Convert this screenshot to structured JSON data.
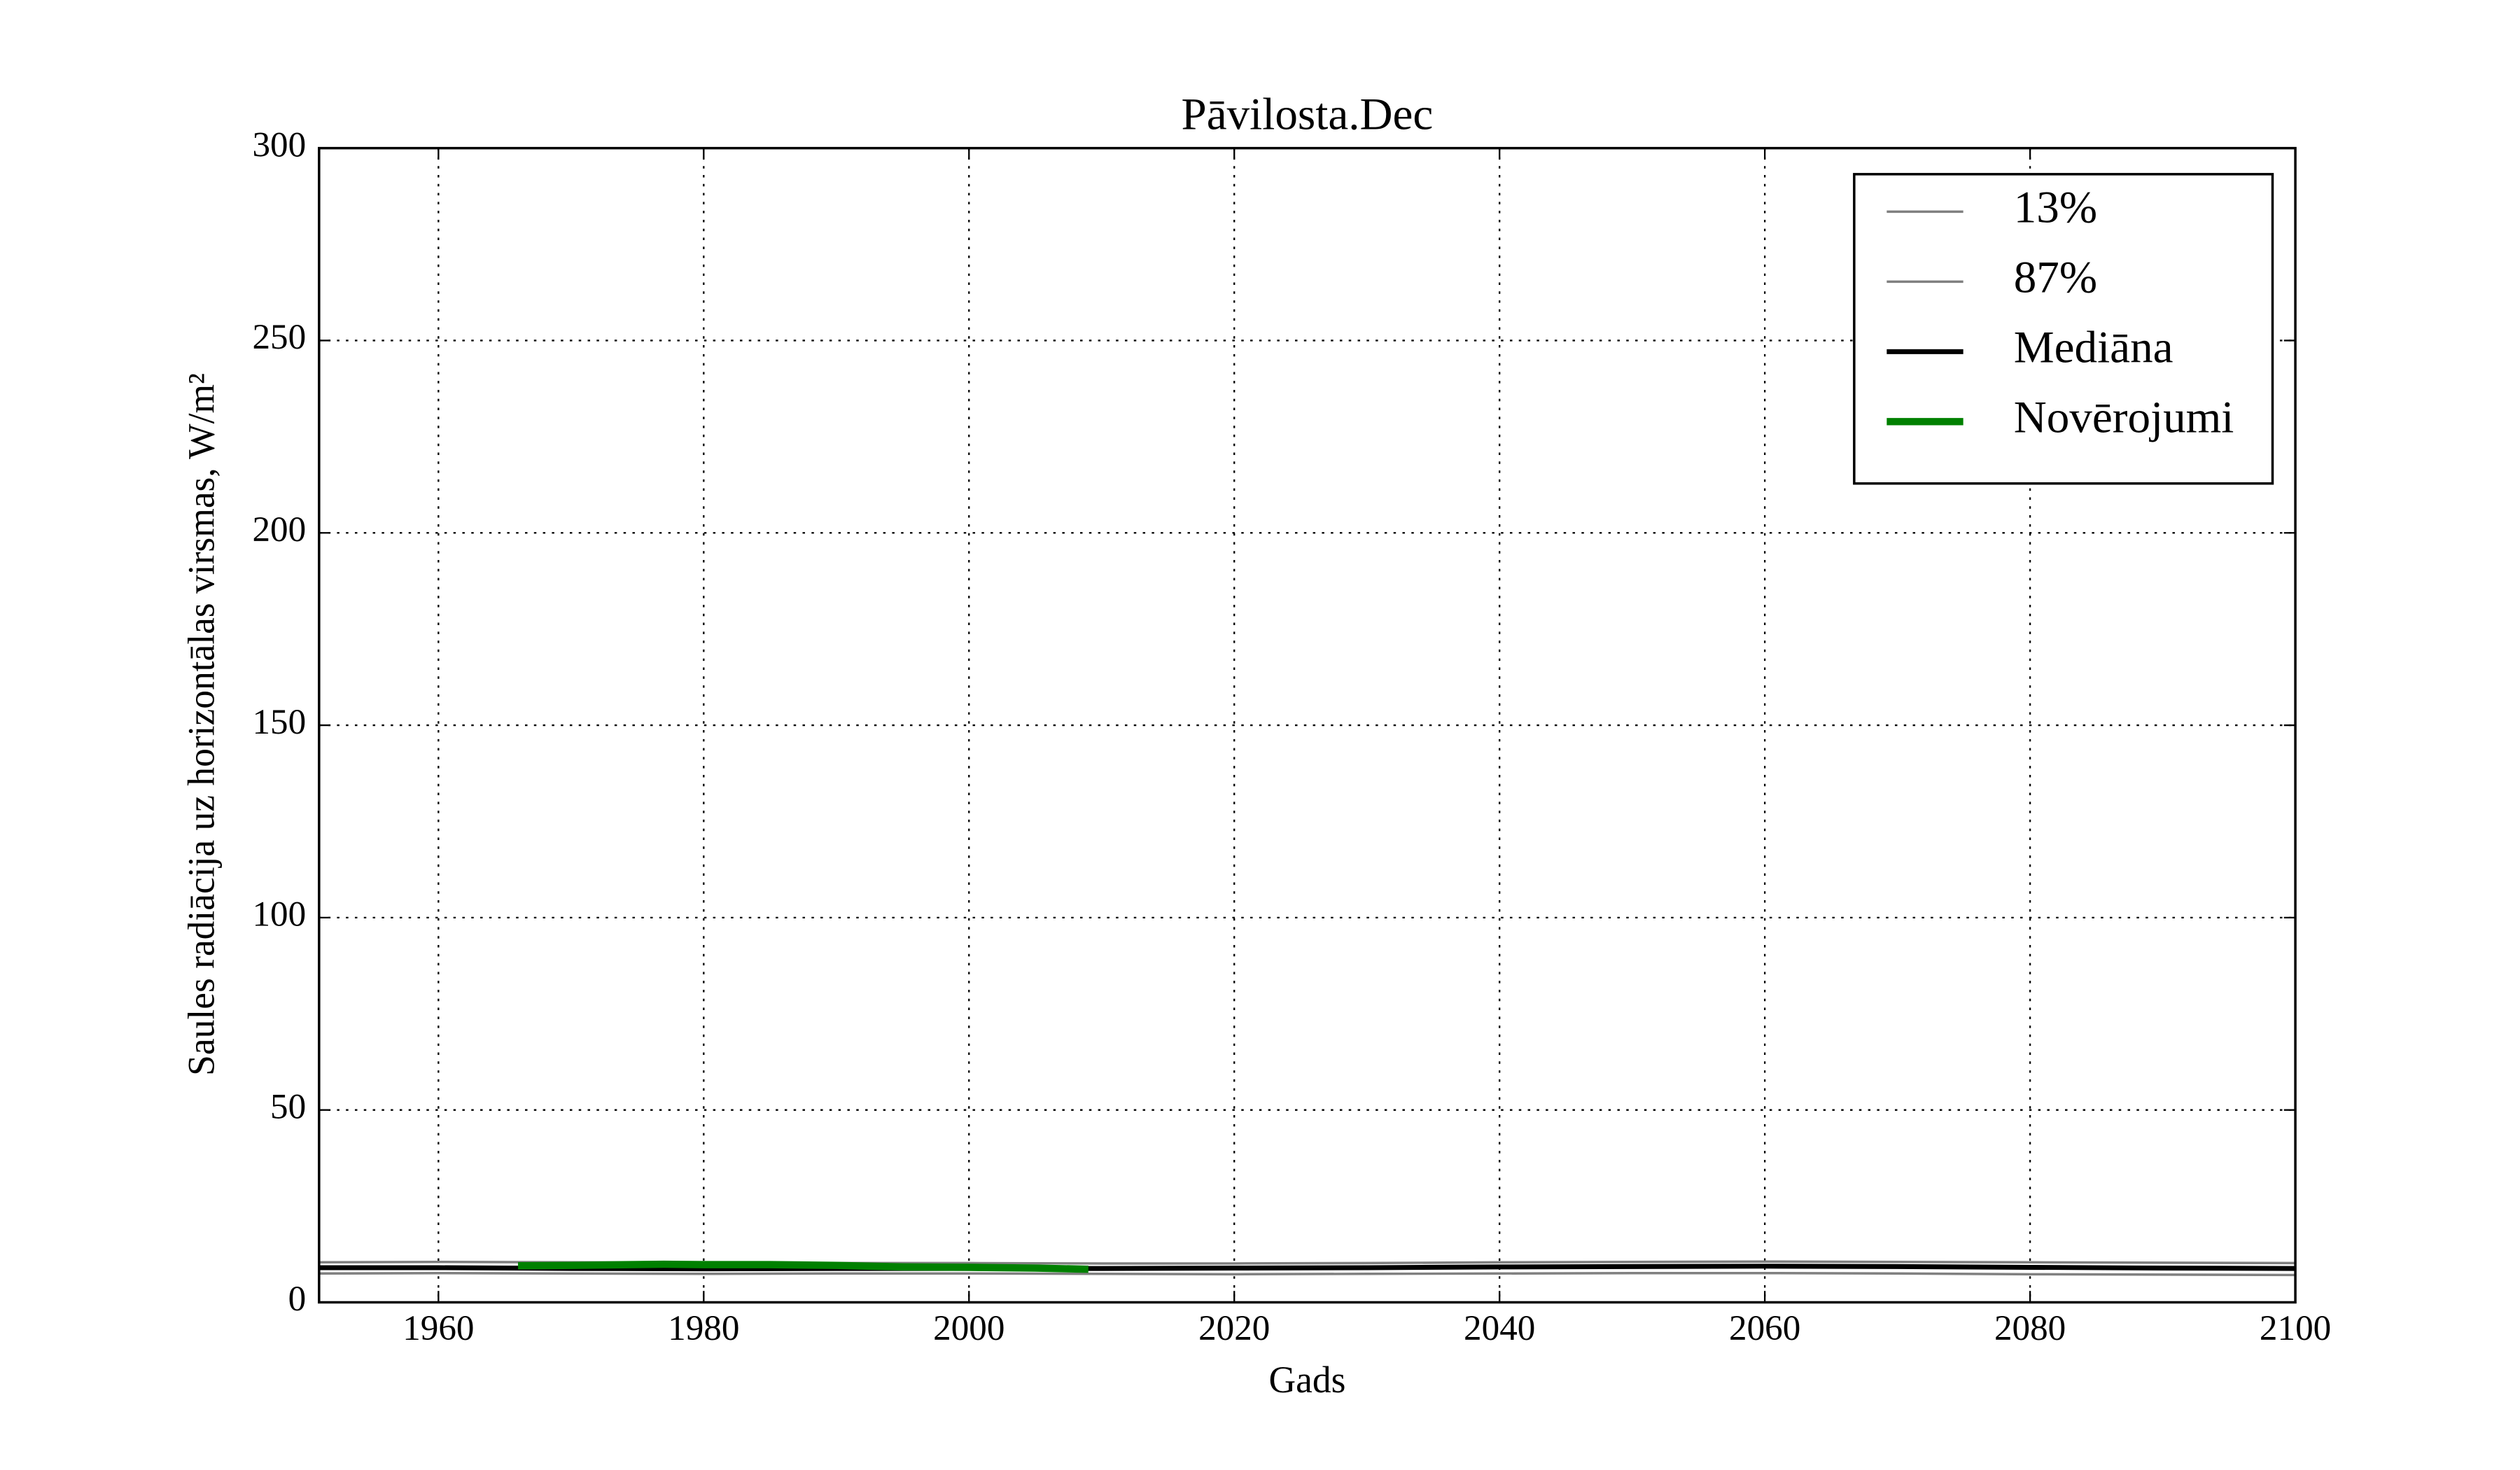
{
  "chart_data": {
    "type": "line",
    "title": "Pāvilosta.Dec",
    "xlabel": "Gads",
    "ylabel": "Saules radiācija uz horizontālas virsmas, W/m²",
    "xlim": [
      1951,
      2100
    ],
    "ylim": [
      0,
      300
    ],
    "xticks": [
      1960,
      1980,
      2000,
      2020,
      2040,
      2060,
      2080,
      2100
    ],
    "yticks": [
      0,
      50,
      100,
      150,
      200,
      250,
      300
    ],
    "grid": true,
    "legend": "upper right",
    "series": [
      {
        "name": "13%",
        "color": "#808080",
        "width": 1.5,
        "x": [
          1951,
          1960,
          1970,
          1980,
          1990,
          2000,
          2010,
          2020,
          2030,
          2040,
          2050,
          2060,
          2070,
          2080,
          2090,
          2100
        ],
        "values": [
          7.5,
          7.6,
          7.5,
          7.4,
          7.5,
          7.5,
          7.4,
          7.3,
          7.4,
          7.5,
          7.6,
          7.6,
          7.5,
          7.3,
          7.2,
          7.1
        ]
      },
      {
        "name": "87%",
        "color": "#808080",
        "width": 1.5,
        "x": [
          1951,
          1960,
          1970,
          1980,
          1990,
          2000,
          2010,
          2020,
          2030,
          2040,
          2050,
          2060,
          2070,
          2080,
          2090,
          2100
        ],
        "values": [
          10.4,
          10.5,
          10.4,
          10.3,
          10.2,
          10.2,
          10.1,
          10.1,
          10.2,
          10.4,
          10.5,
          10.6,
          10.5,
          10.4,
          10.3,
          10.2
        ]
      },
      {
        "name": "Mediāna",
        "color": "#000000",
        "width": 3,
        "x": [
          1951,
          1960,
          1970,
          1980,
          1990,
          2000,
          2010,
          2020,
          2030,
          2040,
          2050,
          2060,
          2070,
          2080,
          2090,
          2100
        ],
        "values": [
          9.0,
          9.0,
          8.8,
          8.7,
          8.8,
          8.8,
          8.8,
          8.9,
          9.0,
          9.2,
          9.3,
          9.4,
          9.3,
          9.1,
          8.9,
          8.8
        ]
      },
      {
        "name": "Novērojumi",
        "color": "#008000",
        "width": 4.5,
        "x": [
          1966,
          1970,
          1977,
          1980,
          1985,
          1990,
          1995,
          2000,
          2005,
          2009
        ],
        "values": [
          9.5,
          9.6,
          9.9,
          9.8,
          9.8,
          9.6,
          9.2,
          9.1,
          8.9,
          8.6
        ]
      }
    ]
  }
}
